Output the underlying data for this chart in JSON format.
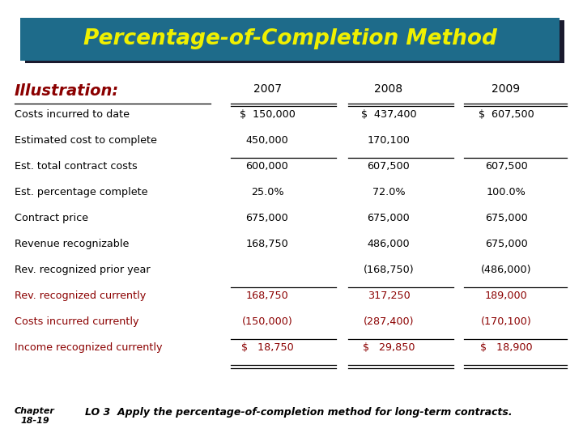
{
  "title": "Percentage-of-Completion Method",
  "title_bg": "#1e6b8a",
  "title_color": "#f0f000",
  "title_shadow_color": "#1a1a2e",
  "illustration_label": "Illustration:",
  "illustration_color": "#8b0000",
  "col_headers": [
    "2007",
    "2008",
    "2009"
  ],
  "rows": [
    {
      "label": "Costs incurred to date",
      "v1": "$  150,000",
      "v2": "$  437,400",
      "v3": "$  607,500",
      "color": "black",
      "line_above": true,
      "line_below": false
    },
    {
      "label": "Estimated cost to complete",
      "v1": "450,000",
      "v2": "170,100",
      "v3": "",
      "color": "black",
      "line_above": false,
      "line_below": true
    },
    {
      "label": "Est. total contract costs",
      "v1": "600,000",
      "v2": "607,500",
      "v3": "607,500",
      "color": "black",
      "line_above": false,
      "line_below": false
    },
    {
      "label": "Est. percentage complete",
      "v1": "25.0%",
      "v2": "72.0%",
      "v3": "100.0%",
      "color": "black",
      "line_above": false,
      "line_below": false
    },
    {
      "label": "Contract price",
      "v1": "675,000",
      "v2": "675,000",
      "v3": "675,000",
      "color": "black",
      "line_above": false,
      "line_below": false
    },
    {
      "label": "Revenue recognizable",
      "v1": "168,750",
      "v2": "486,000",
      "v3": "675,000",
      "color": "black",
      "line_above": false,
      "line_below": false
    },
    {
      "label": "Rev. recognized prior year",
      "v1": "",
      "v2": "(168,750)",
      "v3": "(486,000)",
      "color": "black",
      "line_above": false,
      "line_below": true
    },
    {
      "label": "Rev. recognized currently",
      "v1": "168,750",
      "v2": "317,250",
      "v3": "189,000",
      "color": "#8b0000",
      "line_above": false,
      "line_below": false
    },
    {
      "label": "Costs incurred currently",
      "v1": "(150,000)",
      "v2": "(287,400)",
      "v3": "(170,100)",
      "color": "#8b0000",
      "line_above": false,
      "line_below": false
    },
    {
      "label": "Income recognized currently",
      "v1": "$   18,750",
      "v2": "$   29,850",
      "v3": "$   18,900",
      "color": "#8b0000",
      "line_above": true,
      "line_below": true,
      "double_below": true
    }
  ],
  "footer_chapter": "Chapter\n18-19",
  "footer_text": "LO 3  Apply the percentage-of-completion method for long-term contracts.",
  "bg_color": "#ffffff"
}
